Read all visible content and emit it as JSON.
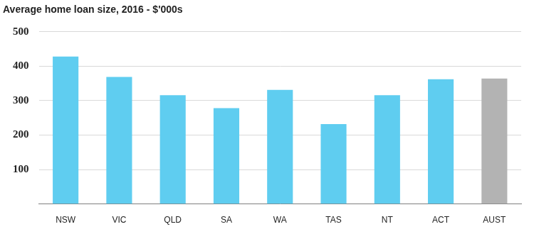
{
  "chart_data": {
    "type": "bar",
    "title": "Average home loan size, 2016 - $'000s",
    "categories": [
      "NSW",
      "VIC",
      "QLD",
      "SA",
      "WA",
      "TAS",
      "NT",
      "ACT",
      "AUST"
    ],
    "values": [
      428,
      369,
      316,
      278,
      331,
      232,
      316,
      362,
      364
    ],
    "colors": [
      "#5fcdf0",
      "#5fcdf0",
      "#5fcdf0",
      "#5fcdf0",
      "#5fcdf0",
      "#5fcdf0",
      "#5fcdf0",
      "#5fcdf0",
      "#b3b3b3"
    ],
    "ylim": [
      0,
      500
    ],
    "yticks": [
      100,
      200,
      300,
      400,
      500
    ],
    "grid": true
  }
}
